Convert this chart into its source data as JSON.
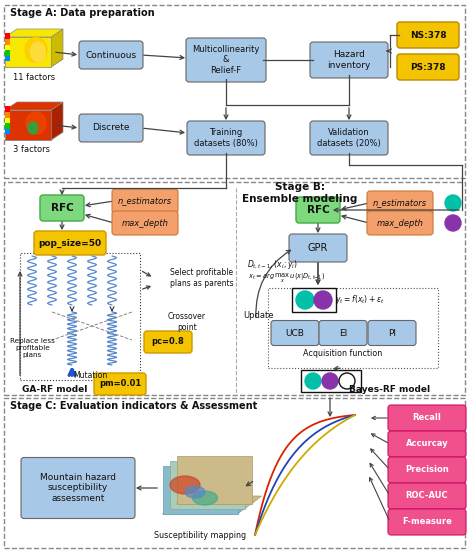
{
  "bg_color": "#ffffff",
  "stage_a_title": "Stage A: Data preparation",
  "stage_b_title": "Stage B:\nEnsemble modeling",
  "stage_c_title": "Stage C: Evaluation indicators & Assessment",
  "col_blue_box": "#a8c8e8",
  "col_orange_box": "#f4a06c",
  "col_green_box": "#7ed87e",
  "col_yellow_box": "#f5c400",
  "col_pink_box": "#f0508c",
  "col_teal": "#00c0a8",
  "col_purple": "#8833aa",
  "col_blue_arrow": "#2255cc",
  "eval_labels": [
    "Recall",
    "Accurcay",
    "Precision",
    "ROC-AUC",
    "F-measure"
  ],
  "arrow_col": "#444444"
}
